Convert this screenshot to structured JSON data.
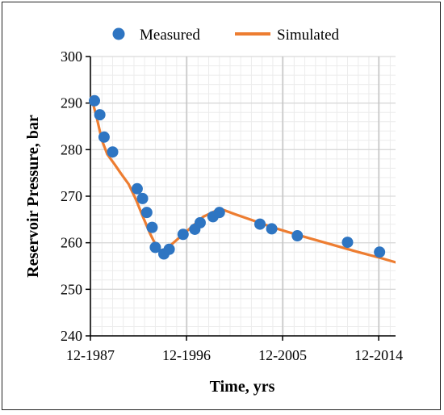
{
  "chart_data": {
    "type": "scatter+line",
    "title": "",
    "xlabel": "Time, yrs",
    "ylabel": "Reservoir Pressure, bar",
    "xlim": [
      1987.92,
      2016.5
    ],
    "ylim": [
      240,
      300
    ],
    "yticks": [
      240,
      250,
      260,
      270,
      280,
      290,
      300
    ],
    "xticks": [
      {
        "value": 1987.92,
        "label": "12-1987"
      },
      {
        "value": 1996.92,
        "label": "12-1996"
      },
      {
        "value": 2005.92,
        "label": "12-2005"
      },
      {
        "value": 2014.92,
        "label": "12-2014"
      }
    ],
    "grid": true,
    "legend_position": "top",
    "series": [
      {
        "name": "Measured",
        "style": "markers",
        "color": "#2E75C2",
        "x": [
          1988.3,
          1988.8,
          1989.2,
          1990.0,
          1992.3,
          1992.8,
          1993.2,
          1993.7,
          1994.0,
          1994.8,
          1995.3,
          1996.6,
          1997.7,
          1998.2,
          1999.4,
          2000.0,
          2003.8,
          2004.9,
          2007.3,
          2012.0,
          2015.0
        ],
        "y": [
          290.5,
          287.5,
          282.7,
          279.5,
          271.6,
          269.5,
          266.5,
          263.3,
          259.0,
          257.6,
          258.6,
          261.8,
          262.9,
          264.3,
          265.6,
          266.5,
          264.0,
          263.0,
          261.5,
          260.1,
          258.0
        ]
      },
      {
        "name": "Simulated",
        "style": "line",
        "color": "#ED7D31",
        "x": [
          1988.0,
          1988.5,
          1989.0,
          1989.5,
          1990.2,
          1990.8,
          1991.5,
          1992.2,
          1992.8,
          1993.5,
          1994.3,
          1994.8,
          1995.5,
          1996.5,
          1997.5,
          1998.5,
          1999.6,
          2000.2,
          2001.5,
          2003.0,
          2005.0,
          2007.0,
          2009.0,
          2011.0,
          2013.0,
          2015.0,
          2016.5
        ],
        "y": [
          291.3,
          287.0,
          282.0,
          279.0,
          276.8,
          274.8,
          272.6,
          269.2,
          265.8,
          262.0,
          258.3,
          258.5,
          259.6,
          261.6,
          263.6,
          265.6,
          266.8,
          267.2,
          266.1,
          264.9,
          263.3,
          261.9,
          260.6,
          259.3,
          258.0,
          256.8,
          255.8
        ]
      }
    ]
  },
  "colors": {
    "grid": "#d9d9d9",
    "minor_grid": "#ececec",
    "axis": "#000000"
  }
}
